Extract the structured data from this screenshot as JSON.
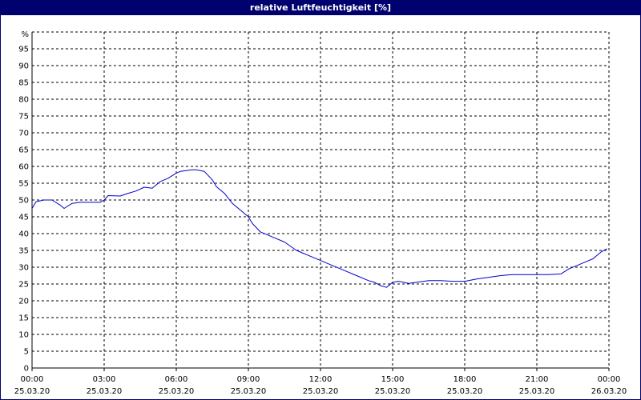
{
  "window": {
    "title": "relative Luftfeuchtigkeit [%]"
  },
  "colors": {
    "titlebar": "#00006e",
    "line": "#0000cc",
    "grid": "#000000"
  },
  "chart_data": {
    "type": "line",
    "title": "relative Luftfeuchtigkeit [%]",
    "ylabel": "%",
    "ylim": [
      0,
      100
    ],
    "y_ticks": [
      0,
      5,
      10,
      15,
      20,
      25,
      30,
      35,
      40,
      45,
      50,
      55,
      60,
      65,
      70,
      75,
      80,
      85,
      90,
      95
    ],
    "x_range_hours": [
      0,
      24
    ],
    "x_ticks": [
      {
        "time": "00:00",
        "date": "25.03.20"
      },
      {
        "time": "03:00",
        "date": "25.03.20"
      },
      {
        "time": "06:00",
        "date": "25.03.20"
      },
      {
        "time": "09:00",
        "date": "25.03.20"
      },
      {
        "time": "12:00",
        "date": "25.03.20"
      },
      {
        "time": "15:00",
        "date": "25.03.20"
      },
      {
        "time": "18:00",
        "date": "25.03.20"
      },
      {
        "time": "21:00",
        "date": "25.03.20"
      },
      {
        "time": "00:00",
        "date": "26.03.20"
      }
    ],
    "grid": true,
    "series": [
      {
        "x": [
          "00:00",
          "00:10",
          "00:30",
          "00:50",
          "01:10",
          "01:20",
          "01:40",
          "02:00",
          "02:30",
          "02:50",
          "03:00",
          "03:10",
          "03:40",
          "04:00",
          "04:20",
          "04:40",
          "05:00",
          "05:20",
          "05:40",
          "06:00",
          "06:10",
          "06:40",
          "06:50",
          "07:10",
          "07:30",
          "07:40",
          "08:00",
          "08:20",
          "08:40",
          "09:00",
          "09:10",
          "09:30",
          "10:00",
          "10:30",
          "11:00",
          "11:30",
          "12:00",
          "12:30",
          "13:00",
          "13:30",
          "14:00",
          "14:15",
          "14:30",
          "14:45",
          "15:00",
          "15:15",
          "15:40",
          "16:00",
          "16:30",
          "17:00",
          "17:30",
          "18:00",
          "18:30",
          "19:00",
          "19:30",
          "20:00",
          "20:30",
          "21:00",
          "21:30",
          "22:00",
          "22:20",
          "22:40",
          "23:00",
          "23:20",
          "23:40",
          "23:55"
        ],
        "y": [
          47.5,
          49.5,
          50,
          50,
          48.5,
          47.5,
          49,
          49.3,
          49.3,
          49.3,
          50,
          51.3,
          51.2,
          52,
          52.7,
          53.8,
          53.5,
          55.5,
          56.5,
          58,
          58.5,
          59,
          59,
          58.5,
          56,
          54,
          52,
          49,
          47,
          45,
          43,
          40.5,
          39,
          37.5,
          35,
          33.5,
          32,
          30.5,
          29,
          27.5,
          26,
          25.5,
          24.5,
          24,
          25.5,
          25.8,
          25.2,
          25.5,
          26,
          26,
          25.8,
          25.8,
          26.5,
          27,
          27.5,
          27.8,
          27.8,
          27.8,
          27.8,
          28,
          29.5,
          30.5,
          31.5,
          32.5,
          34.5,
          35.5
        ]
      }
    ]
  }
}
